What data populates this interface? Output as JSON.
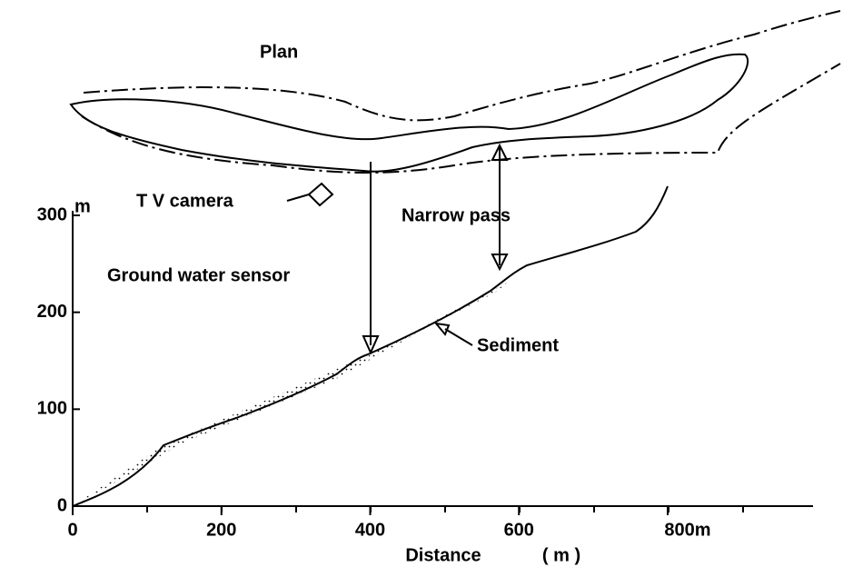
{
  "plan": {
    "title": "Plan"
  },
  "labels": {
    "tv_camera": "T V camera",
    "narrow_pass": "Narrow pass",
    "ground_water_sensor": "Ground water sensor",
    "sediment": "Sediment"
  },
  "axes": {
    "y_unit": "m",
    "yticks": [
      0,
      100,
      200,
      300
    ],
    "xticks": [
      0,
      200,
      400,
      600,
      {
        "value": 800,
        "label": "800m"
      }
    ],
    "x_title": "Distance",
    "x_unit": "( m )"
  }
}
